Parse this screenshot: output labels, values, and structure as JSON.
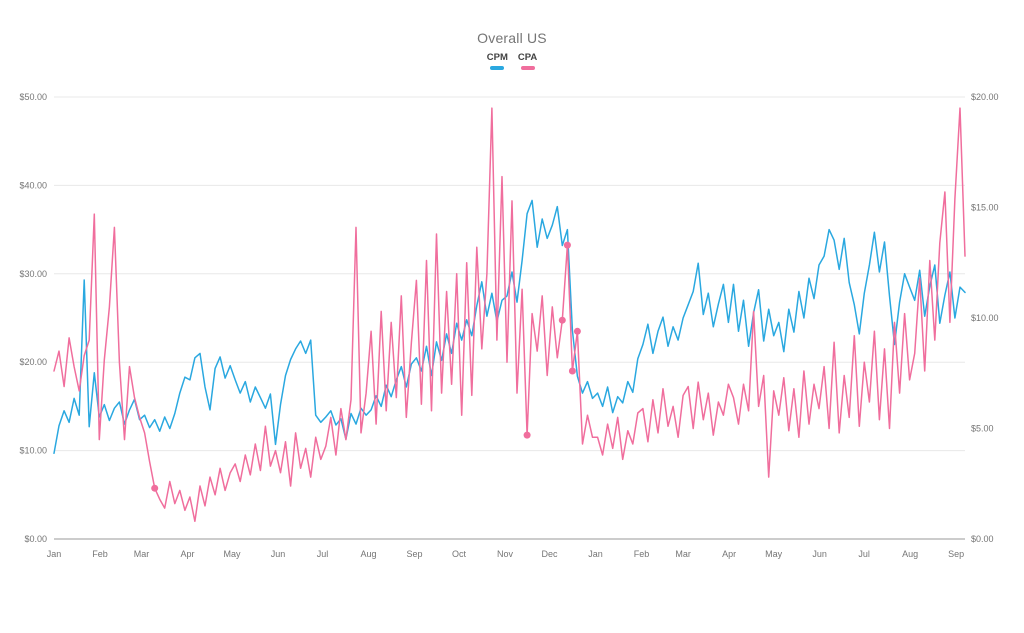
{
  "title": "Overall US",
  "legend": [
    {
      "label": "CPM",
      "color": "#2AA8E0"
    },
    {
      "label": "CPA",
      "color": "#F06E9D"
    }
  ],
  "colors": {
    "cpm_line": "#2AA8E0",
    "cpa_line": "#F06E9D",
    "gridline": "#e8e8e8",
    "axis_baseline": "#999999",
    "axis_text": "#757575",
    "title_text": "#757575",
    "legend_text": "#424242",
    "background": "#ffffff"
  },
  "chart_data": {
    "type": "line",
    "title": "Overall US",
    "grid": "horizontal",
    "legend_position": "top-center",
    "x_axis": {
      "unit": "month",
      "tick_labels": [
        "Jan",
        "Feb",
        "Mar",
        "Apr",
        "May",
        "Jun",
        "Jul",
        "Aug",
        "Sep",
        "Oct",
        "Nov",
        "Dec",
        "Jan",
        "Feb",
        "Mar",
        "Apr",
        "May",
        "Jun",
        "Jul",
        "Aug",
        "Sep"
      ]
    },
    "y_axis_left": {
      "series": "CPM",
      "range": [
        0,
        50
      ],
      "tick_labels": [
        "$0.00",
        "$10.00",
        "$20.00",
        "$30.00",
        "$40.00",
        "$50.00"
      ]
    },
    "y_axis_right": {
      "series": "CPA",
      "range": [
        0,
        20
      ],
      "tick_labels": [
        "$0.00",
        "$5.00",
        "$10.00",
        "$15.00",
        "$20.00"
      ]
    },
    "sampling_note": "daily series approximated at ~3.4-day samples, Jan yr1 through early Sep yr2",
    "series": [
      {
        "name": "CPM",
        "axis": "left",
        "color": "#2AA8E0",
        "values": [
          9.7,
          12.8,
          14.5,
          13.2,
          15.9,
          14.0,
          29.3,
          12.7,
          18.8,
          13.8,
          15.2,
          13.4,
          14.8,
          15.5,
          13.0,
          14.6,
          15.8,
          13.5,
          14.0,
          12.6,
          13.5,
          12.2,
          13.8,
          12.5,
          14.2,
          16.5,
          18.3,
          18.0,
          20.5,
          21.0,
          17.2,
          14.6,
          19.3,
          20.6,
          18.2,
          19.6,
          18.0,
          16.5,
          17.8,
          15.5,
          17.2,
          16.0,
          14.8,
          16.4,
          10.7,
          15.2,
          18.5,
          20.3,
          21.5,
          22.4,
          21.0,
          22.5,
          14.0,
          13.2,
          13.8,
          14.5,
          12.9,
          13.6,
          11.3,
          14.2,
          13.0,
          14.8,
          14.0,
          14.6,
          16.2,
          15.0,
          17.4,
          16.1,
          18.0,
          19.5,
          17.2,
          19.8,
          20.5,
          19.0,
          21.8,
          18.5,
          22.3,
          20.2,
          23.2,
          21.0,
          24.4,
          22.5,
          24.8,
          23.0,
          26.4,
          29.1,
          25.2,
          27.8,
          24.6,
          27.0,
          27.5,
          30.2,
          26.8,
          31.5,
          36.8,
          38.3,
          33.0,
          36.2,
          34.0,
          35.5,
          37.6,
          33.2,
          35.0,
          23.6,
          18.4,
          16.5,
          17.8,
          15.9,
          16.5,
          15.0,
          17.2,
          14.3,
          16.1,
          15.4,
          17.8,
          16.6,
          20.4,
          22.0,
          24.3,
          21.0,
          23.5,
          25.1,
          21.8,
          24.0,
          22.5,
          25.0,
          26.5,
          28.0,
          31.2,
          25.4,
          27.8,
          24.0,
          26.6,
          28.8,
          24.5,
          28.8,
          23.5,
          27.0,
          21.8,
          25.6,
          28.2,
          22.4,
          26.0,
          23.0,
          24.5,
          21.2,
          26.0,
          23.4,
          28.0,
          25.0,
          29.5,
          27.2,
          31.0,
          32.0,
          35.0,
          33.8,
          30.5,
          34.0,
          29.0,
          26.5,
          23.2,
          27.8,
          31.0,
          34.7,
          30.2,
          33.6,
          27.5,
          22.0,
          26.8,
          30.0,
          28.5,
          27.0,
          30.4,
          25.2,
          28.6,
          31.0,
          24.4,
          27.6,
          30.2,
          25.0,
          28.5,
          27.9
        ],
        "marker_indices": []
      },
      {
        "name": "CPA",
        "axis": "right",
        "color": "#F06E9D",
        "values": [
          7.6,
          8.5,
          6.9,
          9.1,
          7.8,
          6.7,
          8.3,
          9.0,
          14.7,
          4.5,
          8.1,
          10.5,
          14.1,
          8.0,
          4.5,
          7.8,
          6.4,
          5.5,
          4.8,
          3.5,
          2.3,
          1.8,
          1.4,
          2.6,
          1.6,
          2.2,
          1.3,
          1.9,
          0.8,
          2.4,
          1.5,
          2.8,
          2.0,
          3.2,
          2.2,
          3.0,
          3.4,
          2.6,
          3.8,
          2.9,
          4.3,
          3.1,
          5.1,
          3.3,
          4.0,
          3.0,
          4.4,
          2.4,
          4.8,
          3.2,
          4.1,
          2.8,
          4.6,
          3.6,
          4.2,
          5.5,
          3.8,
          5.9,
          4.5,
          6.3,
          14.1,
          4.8,
          6.6,
          9.4,
          5.2,
          10.3,
          5.8,
          9.8,
          6.4,
          11.0,
          5.5,
          8.9,
          11.7,
          6.1,
          12.6,
          5.8,
          13.8,
          6.6,
          11.2,
          7.0,
          12.0,
          5.6,
          12.5,
          6.5,
          13.2,
          8.6,
          12.0,
          19.5,
          9.0,
          16.4,
          8.0,
          15.3,
          6.6,
          11.3,
          4.7,
          10.2,
          8.5,
          11.0,
          7.4,
          10.5,
          8.2,
          9.9,
          13.3,
          7.6,
          9.4,
          4.3,
          5.6,
          4.6,
          4.6,
          3.8,
          5.2,
          4.1,
          5.5,
          3.6,
          4.9,
          4.3,
          5.7,
          5.9,
          4.4,
          6.3,
          4.8,
          6.8,
          5.1,
          6.0,
          4.6,
          6.5,
          6.9,
          5.0,
          7.1,
          5.4,
          6.6,
          4.7,
          6.2,
          5.6,
          7.0,
          6.4,
          5.2,
          7.0,
          5.8,
          10.3,
          6.0,
          7.4,
          2.8,
          6.7,
          5.6,
          7.3,
          4.9,
          6.8,
          4.6,
          7.6,
          5.2,
          7.0,
          5.9,
          7.8,
          5.0,
          8.9,
          4.8,
          7.4,
          5.5,
          9.2,
          5.1,
          8.0,
          6.2,
          9.4,
          5.4,
          8.6,
          5.0,
          9.8,
          6.6,
          10.2,
          7.2,
          8.4,
          11.8,
          7.6,
          12.6,
          9.0,
          13.4,
          15.7,
          9.8,
          15.4,
          19.5,
          12.8
        ],
        "marker_indices": [
          20,
          94,
          101,
          102,
          103,
          104
        ]
      }
    ]
  }
}
